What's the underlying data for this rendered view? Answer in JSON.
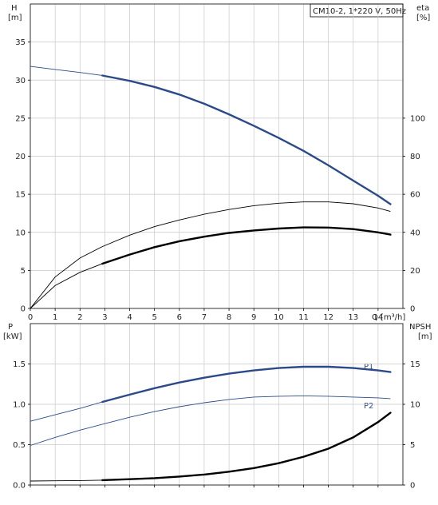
{
  "chart_data": [
    {
      "type": "line",
      "title": "CM10-2, 1*220 V, 50Hz",
      "xlabel": "Q [m³/h]",
      "x_axis_label": "Q",
      "x_axis_unit": "[m³/h]",
      "ylabel": "H",
      "y_unit": "[m]",
      "y2label": "eta",
      "y2_unit": "[%]",
      "xlim": [
        0,
        15
      ],
      "ylim": [
        0,
        40
      ],
      "y2lim": [
        0,
        160
      ],
      "x_ticks": [
        0,
        1,
        2,
        3,
        4,
        5,
        6,
        7,
        8,
        9,
        10,
        11,
        12,
        13,
        14
      ],
      "y_ticks": [
        0,
        5,
        10,
        15,
        20,
        25,
        30,
        35
      ],
      "y2_ticks": [
        0,
        20,
        40,
        60,
        80,
        100
      ],
      "grid": true,
      "series": [
        {
          "axis": "left",
          "color": "#2a4a8a",
          "style": "thin-then-thick",
          "thick_from": 2.9,
          "points": [
            [
              0,
              31.8
            ],
            [
              1,
              31.4
            ],
            [
              2,
              31.0
            ],
            [
              2.9,
              30.6
            ],
            [
              4,
              29.9
            ],
            [
              5,
              29.1
            ],
            [
              6,
              28.1
            ],
            [
              7,
              26.9
            ],
            [
              8,
              25.5
            ],
            [
              9,
              24.0
            ],
            [
              10,
              22.4
            ],
            [
              11,
              20.7
            ],
            [
              12,
              18.8
            ],
            [
              13,
              16.8
            ],
            [
              14,
              14.8
            ],
            [
              14.5,
              13.7
            ]
          ]
        },
        {
          "axis": "right",
          "color": "#000000",
          "style": "thin",
          "points": [
            [
              0,
              0
            ],
            [
              1,
              16.5
            ],
            [
              2,
              26.5
            ],
            [
              2.9,
              32.5
            ],
            [
              4,
              38.5
            ],
            [
              5,
              43
            ],
            [
              6,
              46.5
            ],
            [
              7,
              49.5
            ],
            [
              8,
              52
            ],
            [
              9,
              54
            ],
            [
              10,
              55.3
            ],
            [
              11,
              56
            ],
            [
              12,
              56
            ],
            [
              13,
              55
            ],
            [
              14,
              52.8
            ],
            [
              14.5,
              51
            ]
          ]
        },
        {
          "axis": "right",
          "color": "#000000",
          "style": "thin-then-thick",
          "thick_from": 2.9,
          "points": [
            [
              0,
              0
            ],
            [
              1,
              12
            ],
            [
              2,
              19
            ],
            [
              2.9,
              23.5
            ],
            [
              4,
              28.3
            ],
            [
              5,
              32.2
            ],
            [
              6,
              35.3
            ],
            [
              7,
              37.7
            ],
            [
              8,
              39.7
            ],
            [
              9,
              41
            ],
            [
              10,
              42
            ],
            [
              11,
              42.6
            ],
            [
              12,
              42.5
            ],
            [
              13,
              41.7
            ],
            [
              14,
              40
            ],
            [
              14.5,
              38.8
            ]
          ]
        }
      ]
    },
    {
      "type": "line",
      "xlim": [
        0,
        15
      ],
      "ylabel": "P",
      "y_unit": "[kW]",
      "y2label": "NPSH",
      "y2_unit": "[m]",
      "ylim": [
        0,
        2
      ],
      "y2lim": [
        0,
        20
      ],
      "x_ticks": [
        0,
        1,
        2,
        3,
        4,
        5,
        6,
        7,
        8,
        9,
        10,
        11,
        12,
        13,
        14
      ],
      "y_ticks": [
        "0.0",
        "0.5",
        "1.0",
        "1.5"
      ],
      "y2_ticks": [
        0,
        5,
        10,
        15
      ],
      "grid": true,
      "series": [
        {
          "name": "P1",
          "axis": "left",
          "color": "#2a4a8a",
          "style": "thin-then-thick",
          "thick_from": 2.9,
          "points": [
            [
              0,
              0.79
            ],
            [
              1,
              0.87
            ],
            [
              2,
              0.95
            ],
            [
              2.9,
              1.03
            ],
            [
              4,
              1.12
            ],
            [
              5,
              1.2
            ],
            [
              6,
              1.27
            ],
            [
              7,
              1.33
            ],
            [
              8,
              1.38
            ],
            [
              9,
              1.42
            ],
            [
              10,
              1.45
            ],
            [
              11,
              1.465
            ],
            [
              12,
              1.465
            ],
            [
              13,
              1.45
            ],
            [
              14,
              1.42
            ],
            [
              14.5,
              1.4
            ]
          ]
        },
        {
          "name": "P2",
          "axis": "left",
          "color": "#2a4a8a",
          "style": "thin",
          "points": [
            [
              0,
              0.49
            ],
            [
              1,
              0.59
            ],
            [
              2,
              0.68
            ],
            [
              3,
              0.76
            ],
            [
              4,
              0.84
            ],
            [
              5,
              0.91
            ],
            [
              6,
              0.97
            ],
            [
              7,
              1.02
            ],
            [
              8,
              1.06
            ],
            [
              9,
              1.09
            ],
            [
              10,
              1.1
            ],
            [
              11,
              1.105
            ],
            [
              12,
              1.1
            ],
            [
              13,
              1.09
            ],
            [
              14,
              1.08
            ],
            [
              14.5,
              1.07
            ]
          ]
        },
        {
          "axis": "right",
          "color": "#000000",
          "style": "thin-then-thick",
          "thick_from": 2.9,
          "points": [
            [
              0,
              0.5
            ],
            [
              1,
              0.52
            ],
            [
              2,
              0.55
            ],
            [
              2.9,
              0.6
            ],
            [
              4,
              0.72
            ],
            [
              5,
              0.85
            ],
            [
              6,
              1.05
            ],
            [
              7,
              1.3
            ],
            [
              8,
              1.65
            ],
            [
              9,
              2.1
            ],
            [
              10,
              2.7
            ],
            [
              11,
              3.5
            ],
            [
              12,
              4.5
            ],
            [
              13,
              5.9
            ],
            [
              14,
              7.8
            ],
            [
              14.5,
              8.95
            ]
          ]
        }
      ]
    }
  ]
}
